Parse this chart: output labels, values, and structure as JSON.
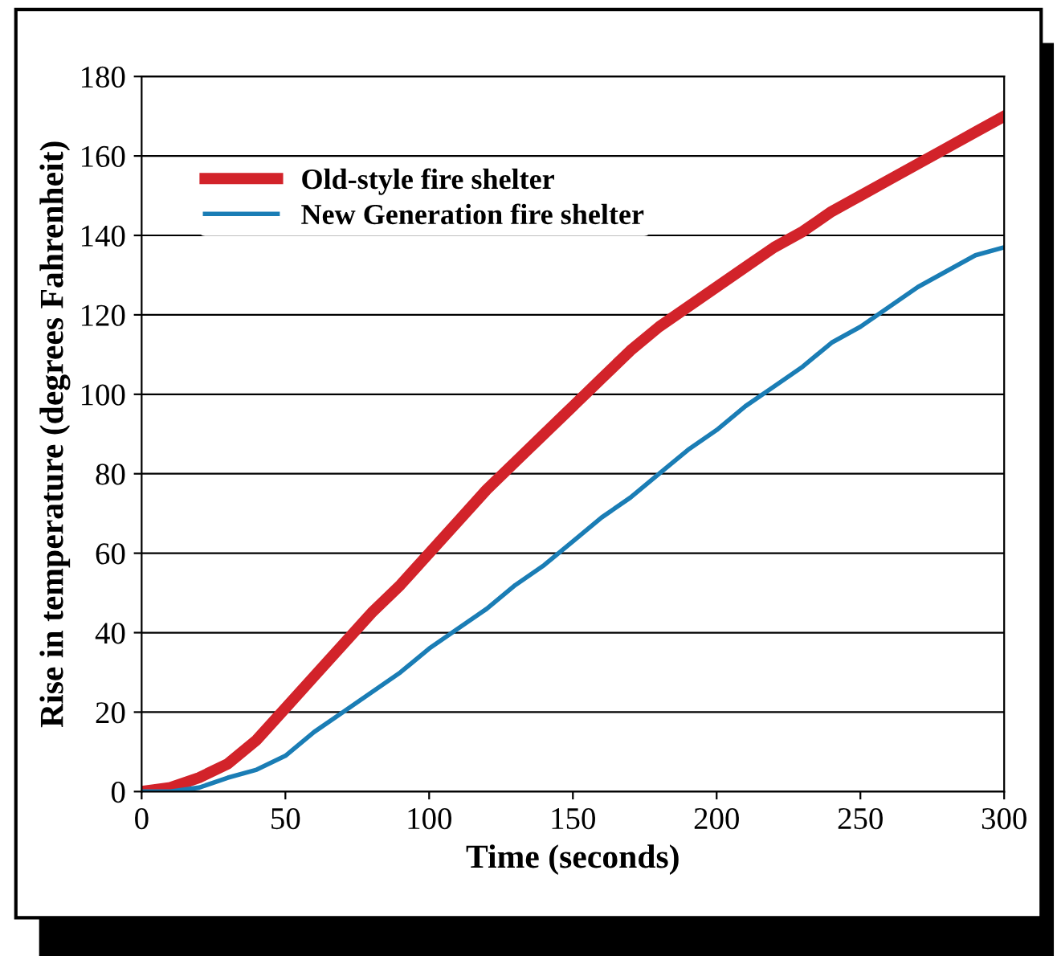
{
  "chart_data": {
    "type": "line",
    "xlabel": "Time (seconds)",
    "ylabel": "Rise in temperature (degrees Fahrenheit)",
    "x": [
      0,
      10,
      20,
      30,
      40,
      50,
      60,
      70,
      80,
      90,
      100,
      110,
      120,
      130,
      140,
      150,
      160,
      170,
      180,
      190,
      200,
      210,
      220,
      230,
      240,
      250,
      260,
      270,
      280,
      290,
      300
    ],
    "series": [
      {
        "name": "Old-style fire shelter",
        "color": "#d2232a",
        "values": [
          0,
          1,
          3.5,
          7,
          13,
          21,
          29,
          37,
          45,
          52,
          60,
          68,
          76,
          83,
          90,
          97,
          104,
          111,
          117,
          122,
          127,
          132,
          137,
          141,
          146,
          150,
          154,
          158,
          162,
          166,
          170
        ]
      },
      {
        "name": "New Generation fire shelter",
        "color": "#1a7db5",
        "values": [
          0,
          0,
          1,
          3.5,
          5.5,
          9,
          15,
          20,
          25,
          30,
          36,
          41,
          46,
          52,
          57,
          63,
          69,
          74,
          80,
          86,
          91,
          97,
          102,
          107,
          113,
          117,
          122,
          127,
          131,
          135,
          137
        ]
      }
    ],
    "xlim": [
      0,
      300
    ],
    "xticks": [
      0,
      50,
      100,
      150,
      200,
      250,
      300
    ],
    "ylim": [
      0,
      180
    ],
    "yticks": [
      0,
      20,
      40,
      60,
      80,
      100,
      120,
      140,
      160,
      180
    ],
    "grid": "y",
    "legend": "top left"
  }
}
